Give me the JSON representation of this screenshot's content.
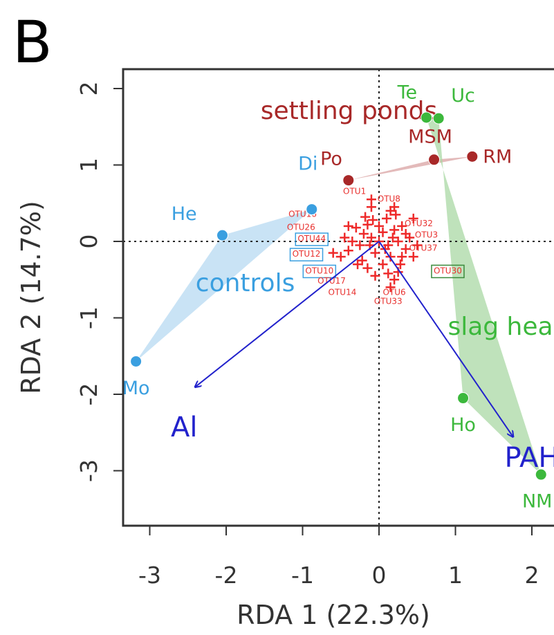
{
  "panel_label": "B",
  "chart_data": {
    "type": "scatter",
    "xlabel": "RDA 1 (22.3%)",
    "ylabel": "RDA 2 (14.7%)",
    "xlim": [
      -3.5,
      2.3
    ],
    "ylim": [
      -3.7,
      2.2
    ],
    "xticks": [
      -3,
      -2,
      -1,
      0,
      1,
      2
    ],
    "yticks": [
      2,
      1,
      0,
      -1,
      -2,
      -3
    ],
    "reference_lines": {
      "x": 0,
      "y": 0,
      "style": "dotted"
    },
    "groups": [
      {
        "name": "settling ponds",
        "color": "#a82828",
        "hull_color": "#d9a3a3",
        "label_pos": [
          -1.55,
          1.6
        ],
        "sites": [
          {
            "label": "Po",
            "x": -0.4,
            "y": 0.8,
            "label_dx": -0.08,
            "label_dy": 0.28,
            "anchor": "end"
          },
          {
            "label": "MSM",
            "x": 0.72,
            "y": 1.07,
            "label_dx": -0.05,
            "label_dy": 0.3,
            "anchor": "middle"
          },
          {
            "label": "RM",
            "x": 1.22,
            "y": 1.11,
            "label_dx": 0.14,
            "label_dy": 0.0,
            "anchor": "start"
          }
        ]
      },
      {
        "name": "controls",
        "color": "#3a9fe0",
        "hull_color": "#b7d9f2",
        "label_pos": [
          -2.4,
          -0.65
        ],
        "sites": [
          {
            "label": "He",
            "x": -2.05,
            "y": 0.08,
            "label_dx": -0.5,
            "label_dy": 0.28,
            "anchor": "middle"
          },
          {
            "label": "Di",
            "x": -0.88,
            "y": 0.42,
            "label_dx": -0.05,
            "label_dy": 0.6,
            "anchor": "middle"
          },
          {
            "label": "Mo",
            "x": -3.18,
            "y": -1.57,
            "label_dx": 0.0,
            "label_dy": -0.35,
            "anchor": "middle"
          }
        ]
      },
      {
        "name": "slag heaps",
        "color": "#3cb83c",
        "hull_color": "#a9d8a4",
        "label_pos": [
          0.9,
          -1.22
        ],
        "sites": [
          {
            "label": "Te",
            "x": 0.62,
            "y": 1.62,
            "label_dx": -0.25,
            "label_dy": 0.33,
            "anchor": "middle"
          },
          {
            "label": "Uc",
            "x": 0.78,
            "y": 1.61,
            "label_dx": 0.32,
            "label_dy": 0.3,
            "anchor": "middle"
          },
          {
            "label": "Ho",
            "x": 1.1,
            "y": -2.05,
            "label_dx": 0.0,
            "label_dy": -0.35,
            "anchor": "middle"
          },
          {
            "label": "NM",
            "x": 2.12,
            "y": -3.05,
            "label_dx": -0.05,
            "label_dy": -0.35,
            "anchor": "middle"
          }
        ]
      }
    ],
    "vectors": [
      {
        "label": "Al",
        "x": -2.4,
        "y": -1.9,
        "label_x": -2.55,
        "label_y": -2.55
      },
      {
        "label": "PAH",
        "x": 1.75,
        "y": -2.55,
        "label_x": 2.0,
        "label_y": -2.95
      }
    ],
    "otu_points": [
      [
        0,
        0
      ],
      [
        0.05,
        0.12
      ],
      [
        -0.1,
        0.05
      ],
      [
        0.12,
        -0.05
      ],
      [
        -0.2,
        0.1
      ],
      [
        0.2,
        0.15
      ],
      [
        -0.05,
        -0.15
      ],
      [
        0.15,
        -0.2
      ],
      [
        -0.25,
        -0.05
      ],
      [
        0.25,
        0.0
      ],
      [
        -0.15,
        0.22
      ],
      [
        0.3,
        0.2
      ],
      [
        -0.3,
        0.18
      ],
      [
        0.1,
        0.3
      ],
      [
        -0.08,
        0.28
      ],
      [
        0.35,
        -0.1
      ],
      [
        -0.35,
        0.0
      ],
      [
        0.05,
        -0.3
      ],
      [
        -0.22,
        -0.25
      ],
      [
        0.28,
        -0.3
      ],
      [
        0.4,
        0.05
      ],
      [
        -0.4,
        -0.12
      ],
      [
        0.18,
        0.05
      ],
      [
        -0.12,
        -0.05
      ],
      [
        0.08,
        -0.1
      ],
      [
        -0.18,
        0.32
      ],
      [
        0.22,
        0.35
      ],
      [
        -0.1,
        0.45
      ],
      [
        0.15,
        0.4
      ],
      [
        -0.4,
        0.2
      ],
      [
        0.45,
        0.3
      ],
      [
        0.35,
        0.1
      ],
      [
        -0.28,
        -0.3
      ],
      [
        0.12,
        -0.42
      ],
      [
        0.2,
        -0.5
      ],
      [
        0.15,
        -0.6
      ],
      [
        0.25,
        -0.4
      ],
      [
        -0.5,
        -0.2
      ],
      [
        -0.45,
        0.05
      ],
      [
        -0.05,
        -0.45
      ],
      [
        0.0,
        0.2
      ],
      [
        0.5,
        -0.05
      ],
      [
        -0.15,
        -0.35
      ],
      [
        0.3,
        -0.2
      ],
      [
        -0.6,
        -0.15
      ],
      [
        -0.1,
        0.55
      ],
      [
        0.2,
        0.45
      ],
      [
        0.45,
        -0.2
      ]
    ],
    "otu_labels": [
      {
        "text": "OTU1",
        "x": -0.32,
        "y": 0.62,
        "box": null
      },
      {
        "text": "OTU8",
        "x": 0.13,
        "y": 0.52,
        "box": null
      },
      {
        "text": "OTU16",
        "x": -1.0,
        "y": 0.32,
        "box": null
      },
      {
        "text": "OTU26",
        "x": -1.02,
        "y": 0.15,
        "box": null
      },
      {
        "text": "OTU44",
        "x": -0.88,
        "y": 0.0,
        "box": "#3a9fe0"
      },
      {
        "text": "OTU12",
        "x": -0.95,
        "y": -0.2,
        "box": "#3a9fe0"
      },
      {
        "text": "OTU10",
        "x": -0.78,
        "y": -0.42,
        "box": "#3a9fe0"
      },
      {
        "text": "OTU32",
        "x": 0.52,
        "y": 0.2,
        "box": null
      },
      {
        "text": "OTU3",
        "x": 0.62,
        "y": 0.05,
        "box": null
      },
      {
        "text": "OTU37",
        "x": 0.58,
        "y": -0.12,
        "box": null
      },
      {
        "text": "OTU30",
        "x": 0.9,
        "y": -0.42,
        "box": "#3a8a3a"
      },
      {
        "text": "OTU17",
        "x": -0.62,
        "y": -0.55,
        "box": null
      },
      {
        "text": "OTU14",
        "x": -0.48,
        "y": -0.7,
        "box": null
      },
      {
        "text": "OTU6",
        "x": 0.2,
        "y": -0.7,
        "box": null
      },
      {
        "text": "OTU33",
        "x": 0.12,
        "y": -0.82,
        "box": null
      }
    ]
  }
}
